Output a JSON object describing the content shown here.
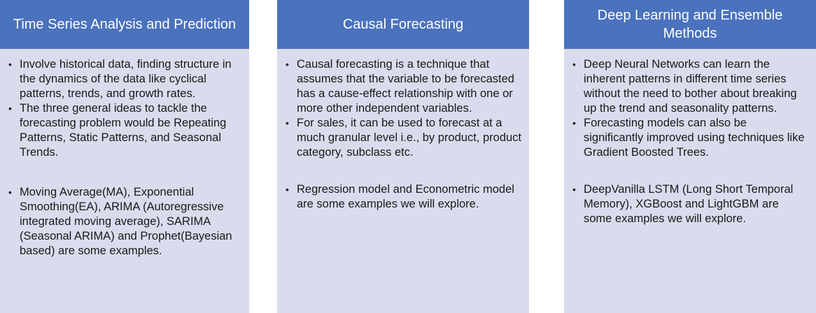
{
  "columns": [
    {
      "title": "Time Series Analysis and Prediction",
      "bullets": [
        "Involve historical data, finding structure in the dynamics of the data like cyclical patterns, trends, and growth rates.",
        "The three general ideas to tackle the forecasting problem would be Repeating Patterns, Static Patterns, and Seasonal Trends.",
        "Moving Average(MA), Exponential Smoothing(EA), ARIMA (Autoregressive integrated moving average), SARIMA (Seasonal ARIMA) and Prophet(Bayesian based) are some examples."
      ]
    },
    {
      "title": "Causal Forecasting",
      "bullets": [
        "Causal forecasting is a technique that assumes that the variable to be forecasted has a cause-effect relationship with one or more other independent variables.",
        "For sales, it can be used to forecast at a much granular level i.e., by product, product category, subclass etc.",
        "Regression model and Econometric model are some examples we will explore."
      ]
    },
    {
      "title": "Deep Learning and Ensemble Methods",
      "bullets": [
        "Deep Neural Networks can learn the inherent patterns in different time series without the need to bother about breaking up the trend and seasonality patterns.",
        "Forecasting models can also be significantly improved using techniques like Gradient Boosted Trees.",
        "DeepVanilla LSTM (Long Short Temporal Memory), XGBoost and LightGBM are some examples we will explore."
      ]
    }
  ],
  "bullet_glyph": "•",
  "colors": {
    "header_bg": "#4a72bd",
    "card_bg": "#d9dcec",
    "header_text": "#ffffff",
    "body_text": "#1a1a1a"
  }
}
